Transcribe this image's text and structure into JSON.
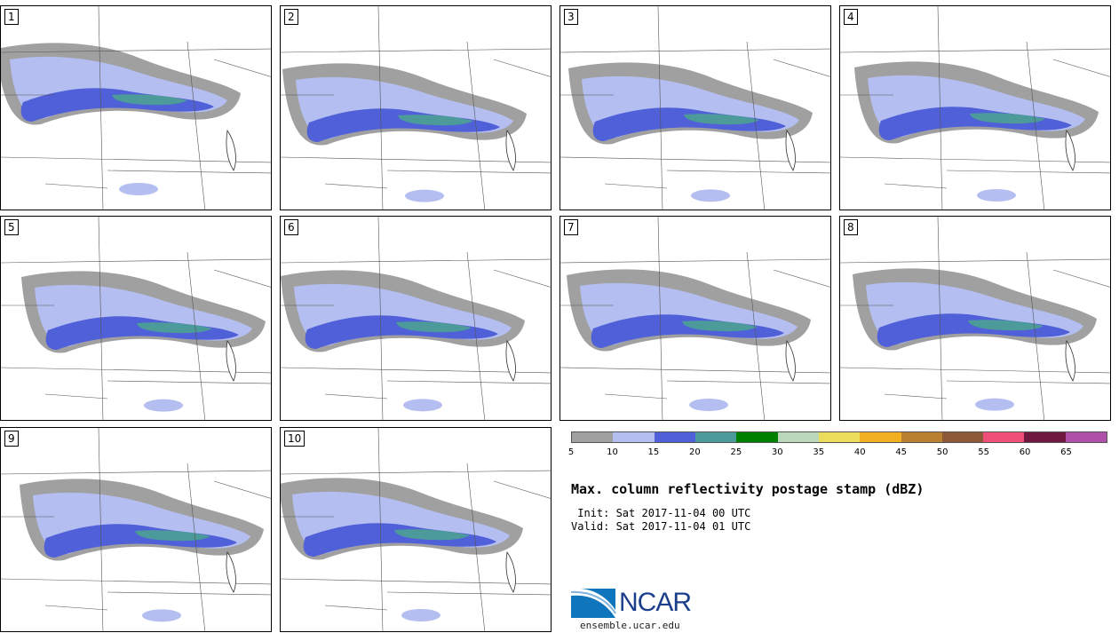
{
  "panels": [
    {
      "num": "1"
    },
    {
      "num": "2"
    },
    {
      "num": "3"
    },
    {
      "num": "4"
    },
    {
      "num": "5"
    },
    {
      "num": "6"
    },
    {
      "num": "7"
    },
    {
      "num": "8"
    },
    {
      "num": "9"
    },
    {
      "num": "10"
    }
  ],
  "legend": {
    "colors": [
      "#a0a0a0",
      "#b4bef0",
      "#5060d8",
      "#4c9a9a",
      "#008000",
      "#bcd8bc",
      "#ecdc5c",
      "#f0b020",
      "#b88030",
      "#8c5838",
      "#f05078",
      "#701840",
      "#b050a8"
    ],
    "ticks": [
      "5",
      "10",
      "15",
      "20",
      "25",
      "30",
      "35",
      "40",
      "45",
      "50",
      "55",
      "60",
      "65"
    ]
  },
  "title": "Max. column reflectivity postage stamp (dBZ)",
  "init_text": " Init: Sat 2017-11-04 00 UTC",
  "valid_text": "Valid: Sat 2017-11-04 01 UTC",
  "logo": {
    "text": "NCAR",
    "url": "ensemble.ucar.edu"
  }
}
